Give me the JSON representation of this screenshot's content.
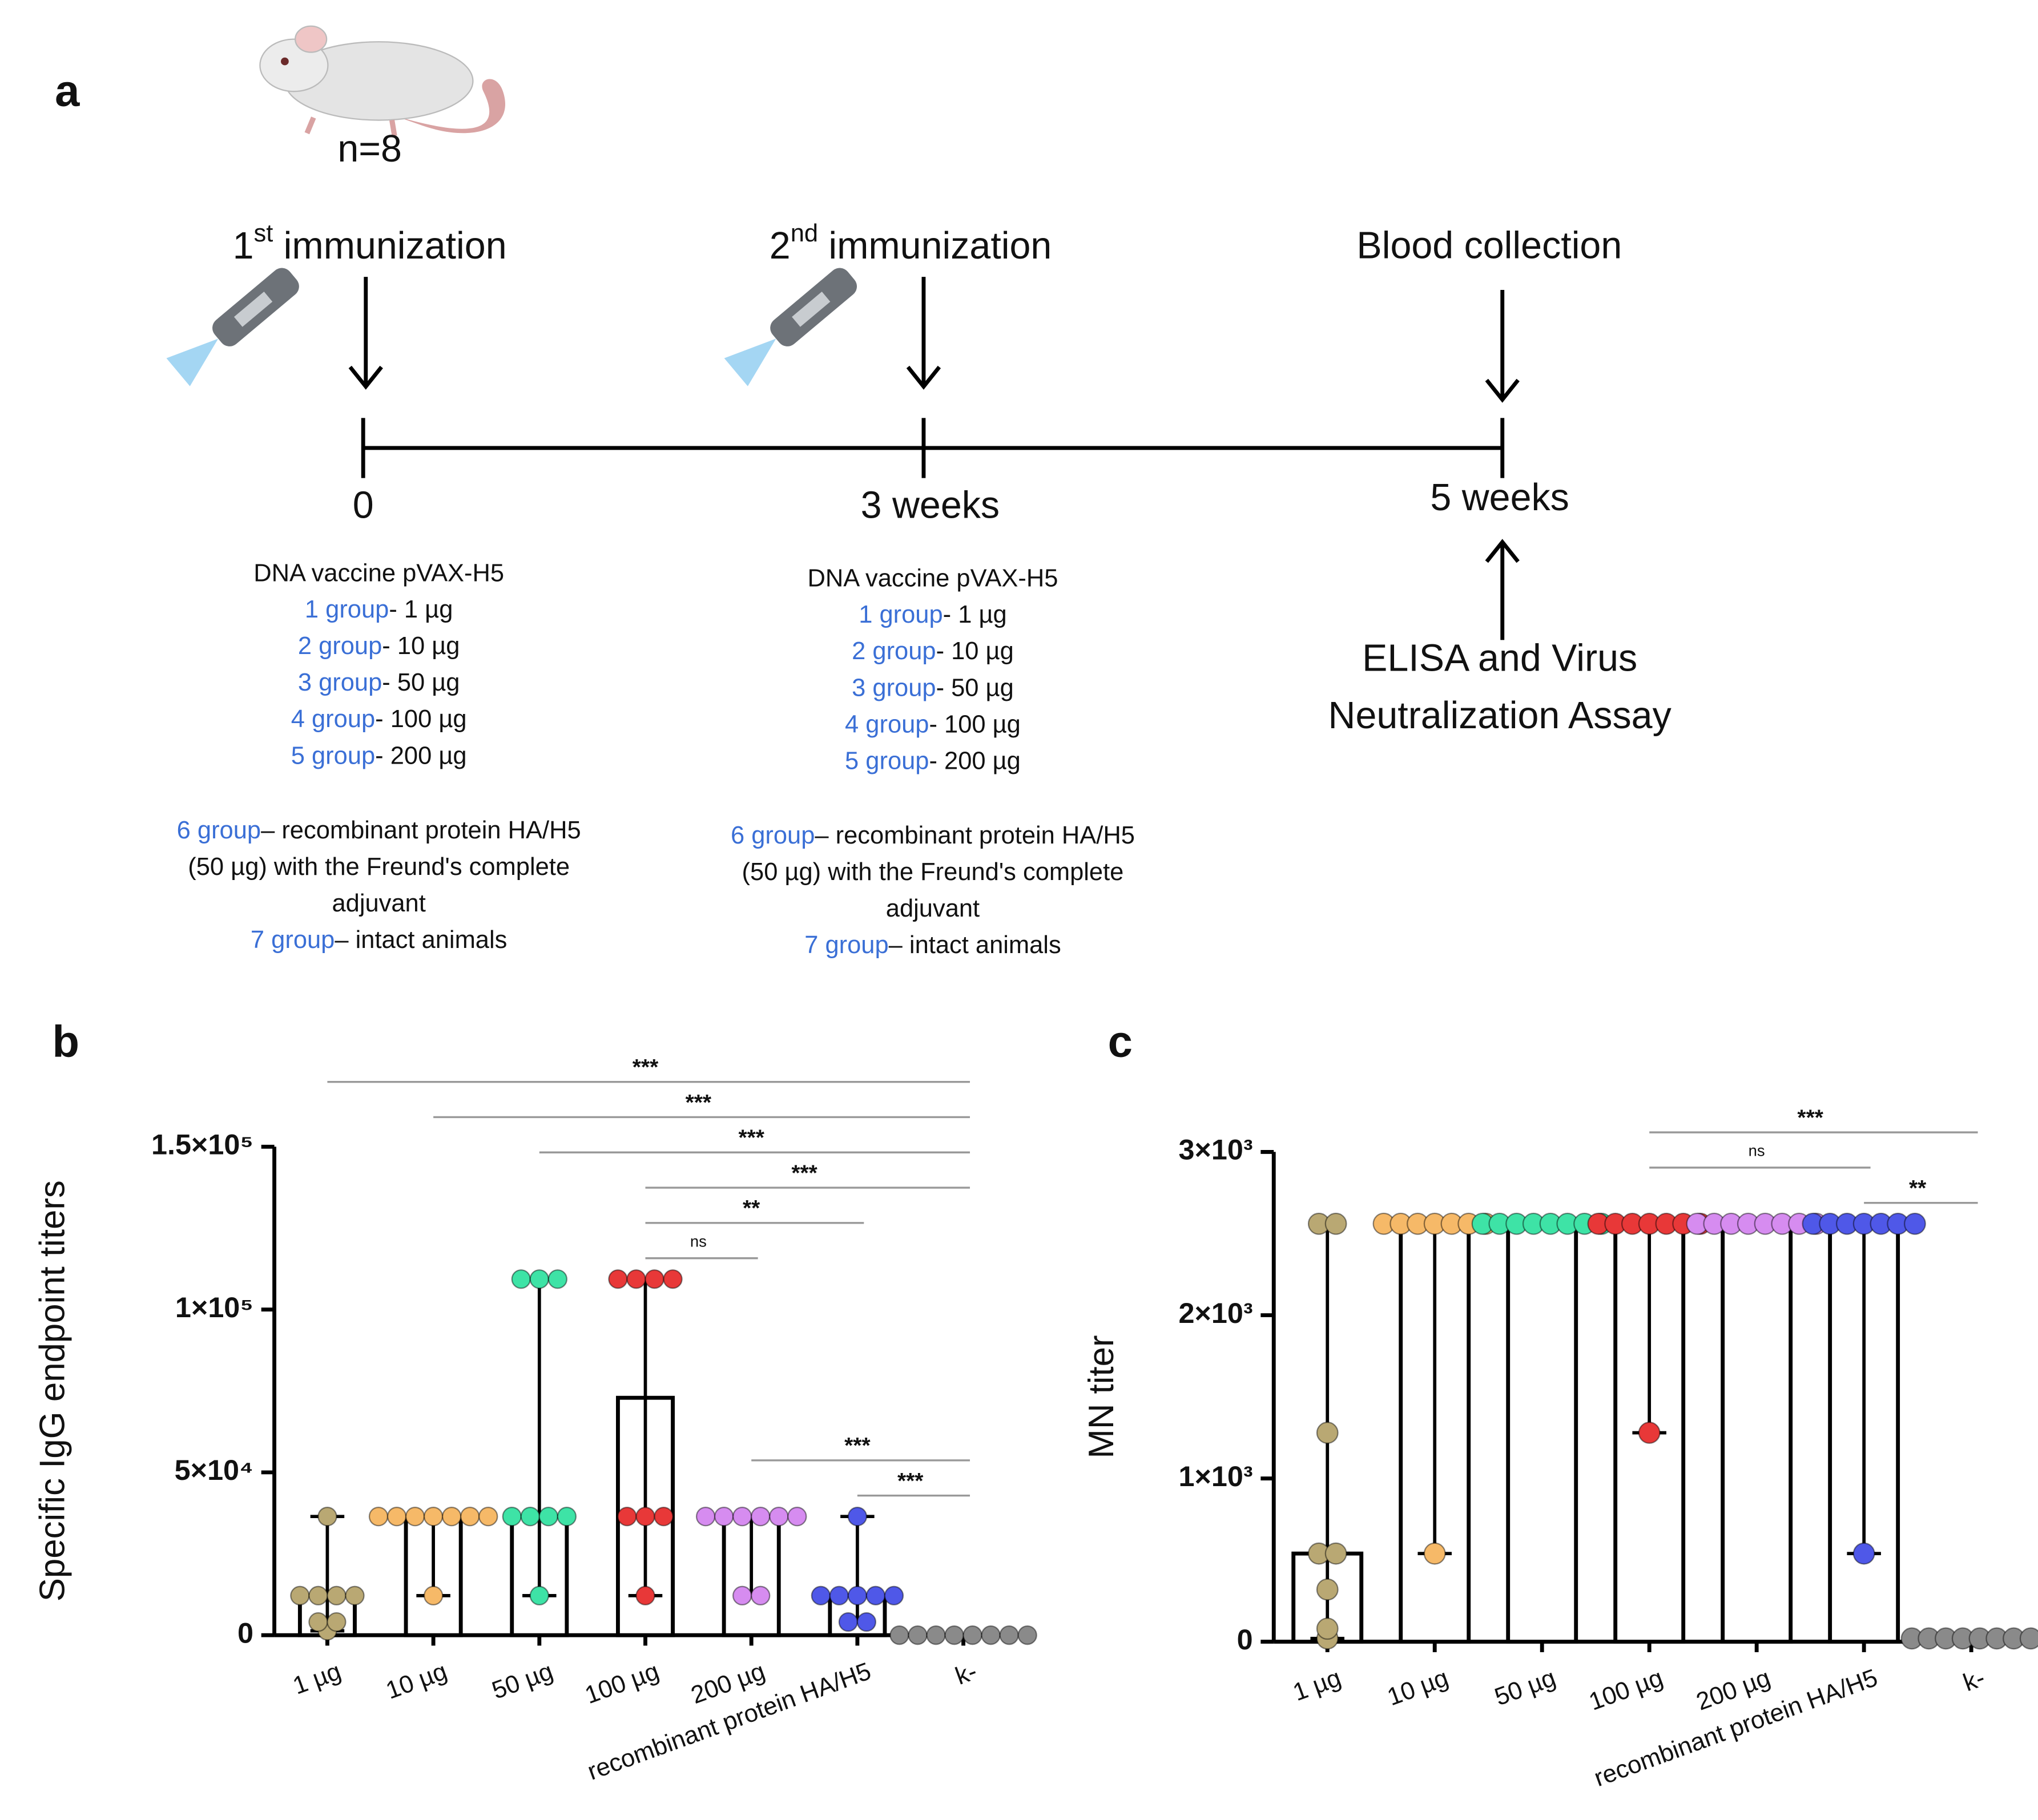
{
  "panel_a": {
    "label": "a",
    "animals": "n=8",
    "events": [
      {
        "ordinal": "1",
        "sup": "st",
        "text": "immunization"
      },
      {
        "ordinal": "2",
        "sup": "nd",
        "text": "immunization"
      },
      {
        "text": "Blood collection"
      }
    ],
    "timepoints": [
      "0",
      "3 weeks",
      "5 weeks"
    ],
    "assay": [
      "ELISA and Virus",
      "Neutralization Assay"
    ],
    "schedules": [
      {
        "vaccine": "DNA vaccine pVAX-H5",
        "groups": [
          {
            "label": "1 group",
            "lines": [
              "- 1 µg"
            ]
          },
          {
            "label": "2 group",
            "lines": [
              "- 10 µg"
            ]
          },
          {
            "label": "3 group",
            "lines": [
              "- 50 µg"
            ]
          },
          {
            "label": "4 group",
            "lines": [
              "- 100 µg"
            ]
          },
          {
            "label": "5 group",
            "lines": [
              "- 200 µg"
            ]
          },
          {
            "label": "6 group",
            "lines": [
              "– recombinant protein HA/H5",
              "(50 µg) with the Freund's complete",
              "adjuvant"
            ]
          },
          {
            "label": "7 group",
            "lines": [
              "– intact animals"
            ]
          }
        ]
      },
      {
        "vaccine": "DNA vaccine pVAX-H5",
        "groups": [
          {
            "label": "1 group",
            "lines": [
              "- 1 µg"
            ]
          },
          {
            "label": "2 group",
            "lines": [
              "- 10 µg"
            ]
          },
          {
            "label": "3 group",
            "lines": [
              "- 50 µg"
            ]
          },
          {
            "label": "4 group",
            "lines": [
              "- 100 µg"
            ]
          },
          {
            "label": "5 group",
            "lines": [
              "- 200 µg"
            ]
          },
          {
            "label": "6 group",
            "lines": [
              "– recombinant protein HA/H5",
              "(50 µg) with the Freund's complete",
              "adjuvant"
            ]
          },
          {
            "label": "7 group",
            "lines": [
              "– intact animals"
            ]
          }
        ]
      }
    ]
  },
  "chart_data": [
    {
      "type": "bar",
      "panel_label": "b",
      "ylabel": "Specific IgG endpoint titers",
      "categories": [
        "1 µg",
        "10 µg",
        "50 µg",
        "100 µg",
        "200 µg",
        "recombinant protein HA/H5",
        "k-"
      ],
      "values": [
        12150,
        36450,
        36450,
        72900,
        36450,
        12150,
        0
      ],
      "points": [
        [
          36450,
          12150,
          12150,
          12150,
          12150,
          4050,
          4050,
          1350
        ],
        [
          36450,
          36450,
          36450,
          36450,
          36450,
          36450,
          36450,
          12150
        ],
        [
          109350,
          109350,
          109350,
          36450,
          36450,
          36450,
          36450,
          12150
        ],
        [
          109350,
          109350,
          109350,
          109350,
          36450,
          36450,
          36450,
          12150
        ],
        [
          36450,
          36450,
          36450,
          36450,
          36450,
          36450,
          12150,
          12150
        ],
        [
          36450,
          12150,
          12150,
          12150,
          12150,
          12150,
          4050,
          4050
        ],
        [
          0,
          0,
          0,
          0,
          0,
          0,
          0,
          0
        ]
      ],
      "colors": [
        "#b9a873",
        "#f6b968",
        "#3ee3a6",
        "#e83838",
        "#d68cf0",
        "#4f58e8",
        "#8a8a8a"
      ],
      "ylim": [
        0,
        150000
      ],
      "yticks": [
        0,
        {
          "value": 50000,
          "label": "5×10⁴"
        },
        {
          "value": 100000,
          "label": "1×10⁵"
        },
        {
          "value": 150000,
          "label": "1.5×10⁵"
        }
      ],
      "comparisons": [
        {
          "groups": [
            "1 µg",
            "k-"
          ],
          "label": "***"
        },
        {
          "groups": [
            "10 µg",
            "k-"
          ],
          "label": "***"
        },
        {
          "groups": [
            "50 µg",
            "k-"
          ],
          "label": "***"
        },
        {
          "groups": [
            "100 µg",
            "k-"
          ],
          "label": "***"
        },
        {
          "groups": [
            "100 µg",
            "recombinant protein HA/H5"
          ],
          "label": "**"
        },
        {
          "groups": [
            "100 µg",
            "200 µg"
          ],
          "label": "ns"
        },
        {
          "groups": [
            "200 µg",
            "k-"
          ],
          "label": "***"
        },
        {
          "groups": [
            "recombinant protein HA/H5",
            "k-"
          ],
          "label": "***"
        }
      ]
    },
    {
      "type": "bar",
      "panel_label": "c",
      "ylabel": "MN titer",
      "categories": [
        "1 µg",
        "10 µg",
        "50 µg",
        "100 µg",
        "200 µg",
        "recombinant protein HA/H5",
        "k-"
      ],
      "values": [
        540,
        2560,
        2560,
        2560,
        2560,
        2560,
        20
      ],
      "points": [
        [
          2560,
          2560,
          1280,
          540,
          540,
          320,
          80,
          20
        ],
        [
          2560,
          2560,
          2560,
          2560,
          2560,
          2560,
          2560,
          540
        ],
        [
          2560,
          2560,
          2560,
          2560,
          2560,
          2560,
          2560,
          2560
        ],
        [
          2560,
          2560,
          2560,
          2560,
          2560,
          2560,
          2560,
          1280
        ],
        [
          2560,
          2560,
          2560,
          2560,
          2560,
          2560,
          2560,
          2560
        ],
        [
          2560,
          2560,
          2560,
          2560,
          2560,
          2560,
          2560,
          540
        ],
        [
          20,
          20,
          20,
          20,
          20,
          20,
          20,
          20
        ]
      ],
      "colors": [
        "#b9a873",
        "#f6b968",
        "#3ee3a6",
        "#e83838",
        "#d68cf0",
        "#4f58e8",
        "#8a8a8a"
      ],
      "ylim": [
        0,
        3000
      ],
      "yticks": [
        0,
        {
          "value": 1000,
          "label": "1×10³"
        },
        {
          "value": 2000,
          "label": "2×10³"
        },
        {
          "value": 3000,
          "label": "3×10³"
        }
      ],
      "comparisons": [
        {
          "groups": [
            "100 µg",
            "k-"
          ],
          "label": "***"
        },
        {
          "groups": [
            "100 µg",
            "recombinant protein HA/H5"
          ],
          "label": "ns"
        },
        {
          "groups": [
            "recombinant protein HA/H5",
            "k-"
          ],
          "label": "**"
        }
      ]
    }
  ]
}
